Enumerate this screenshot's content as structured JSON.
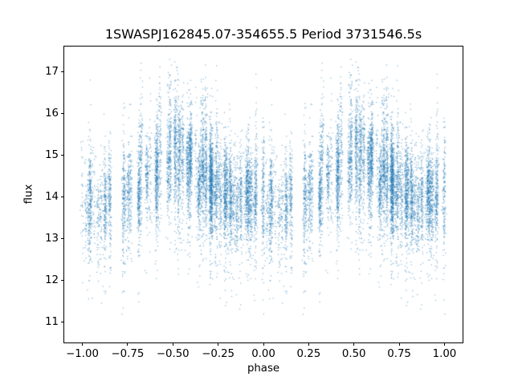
{
  "chart_data": {
    "type": "scatter",
    "title": "1SWASPJ162845.07-354655.5 Period 3731546.5s",
    "xlabel": "phase",
    "ylabel": "flux",
    "xlim": [
      -1.1,
      1.1
    ],
    "ylim": [
      10.5,
      17.6
    ],
    "xticks": [
      -1.0,
      -0.75,
      -0.5,
      -0.25,
      0.0,
      0.25,
      0.5,
      0.75,
      1.0
    ],
    "xtick_labels": [
      "−1.00",
      "−0.75",
      "−0.50",
      "−0.25",
      "0.00",
      "0.25",
      "0.50",
      "0.75",
      "1.00"
    ],
    "yticks": [
      11,
      12,
      13,
      14,
      15,
      16,
      17
    ],
    "ytick_labels": [
      "11",
      "12",
      "13",
      "14",
      "15",
      "16",
      "17"
    ],
    "grid": false,
    "legend": null,
    "marker": {
      "color": "#1f77b4",
      "alpha": 0.5,
      "radius_px": 0.75
    },
    "phase_duplicated": true,
    "phase_cycle_range": [
      0,
      1
    ],
    "plotted_phase_range": [
      -1,
      1
    ],
    "scatter_model": {
      "seed": 42,
      "n_stripes": 120,
      "stripe_width_phase": 0.004,
      "points_per_stripe_min": 25,
      "points_per_stripe_max": 140,
      "base_std_flux": 0.42,
      "std_jitter": 0.28,
      "stripe_mean_jitter": 0.22,
      "flare_stripe_probability": 0.2,
      "flux_clip": [
        10.85,
        17.35
      ],
      "mean_flux_profile": [
        [
          0.0,
          14.0
        ],
        [
          0.05,
          13.85
        ],
        [
          0.1,
          13.8
        ],
        [
          0.15,
          13.85
        ],
        [
          0.2,
          13.9
        ],
        [
          0.25,
          14.05
        ],
        [
          0.3,
          14.15
        ],
        [
          0.35,
          14.45
        ],
        [
          0.4,
          14.6
        ],
        [
          0.45,
          14.75
        ],
        [
          0.5,
          14.8
        ],
        [
          0.55,
          14.85
        ],
        [
          0.6,
          14.75
        ],
        [
          0.65,
          14.55
        ],
        [
          0.7,
          14.4
        ],
        [
          0.75,
          14.2
        ],
        [
          0.8,
          14.05
        ],
        [
          0.85,
          14.1
        ],
        [
          0.9,
          13.95
        ],
        [
          0.95,
          13.85
        ],
        [
          1.0,
          14.0
        ]
      ],
      "density_profile": [
        [
          0.0,
          0.9
        ],
        [
          0.05,
          0.8
        ],
        [
          0.1,
          0.7
        ],
        [
          0.15,
          0.5
        ],
        [
          0.2,
          0.45
        ],
        [
          0.25,
          0.6
        ],
        [
          0.3,
          0.8
        ],
        [
          0.35,
          1.0
        ],
        [
          0.4,
          1.0
        ],
        [
          0.45,
          1.0
        ],
        [
          0.5,
          1.0
        ],
        [
          0.55,
          1.0
        ],
        [
          0.6,
          1.0
        ],
        [
          0.65,
          0.95
        ],
        [
          0.7,
          0.9
        ],
        [
          0.75,
          0.8
        ],
        [
          0.8,
          0.75
        ],
        [
          0.85,
          0.8
        ],
        [
          0.9,
          0.7
        ],
        [
          0.95,
          0.8
        ],
        [
          1.0,
          0.9
        ]
      ]
    }
  }
}
